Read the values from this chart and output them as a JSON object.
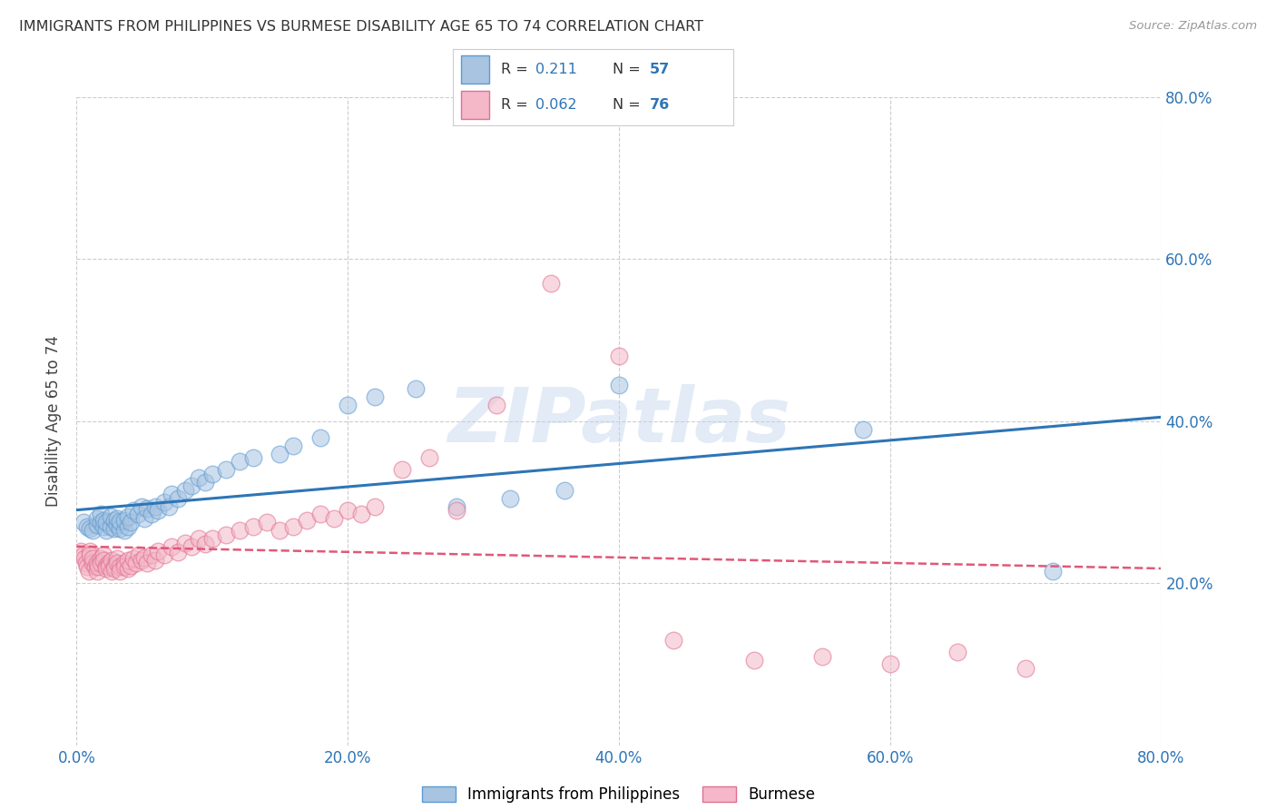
{
  "title": "IMMIGRANTS FROM PHILIPPINES VS BURMESE DISABILITY AGE 65 TO 74 CORRELATION CHART",
  "source": "Source: ZipAtlas.com",
  "ylabel": "Disability Age 65 to 74",
  "legend_label_1": "Immigrants from Philippines",
  "legend_label_2": "Burmese",
  "r1": 0.211,
  "n1": 57,
  "r2": 0.062,
  "n2": 76,
  "color1": "#a8c4e0",
  "color1_edge": "#5b9bd5",
  "color1_line": "#2e75b6",
  "color2": "#f4b8c8",
  "color2_edge": "#e07090",
  "color2_line": "#e05878",
  "xlim": [
    0.0,
    0.8
  ],
  "ylim": [
    0.0,
    0.8
  ],
  "xticks": [
    0.0,
    0.2,
    0.4,
    0.6,
    0.8
  ],
  "yticks": [
    0.2,
    0.4,
    0.6,
    0.8
  ],
  "xticklabels": [
    "0.0%",
    "20.0%",
    "40.0%",
    "60.0%",
    "80.0%"
  ],
  "yticklabels": [
    "20.0%",
    "40.0%",
    "60.0%",
    "80.0%"
  ],
  "background_color": "#ffffff",
  "grid_color": "#c8c8c8",
  "watermark": "ZIPatlas",
  "philippine_x": [
    0.005,
    0.008,
    0.01,
    0.012,
    0.015,
    0.015,
    0.018,
    0.018,
    0.02,
    0.02,
    0.022,
    0.022,
    0.025,
    0.025,
    0.028,
    0.028,
    0.03,
    0.03,
    0.032,
    0.032,
    0.035,
    0.035,
    0.038,
    0.038,
    0.04,
    0.042,
    0.045,
    0.048,
    0.05,
    0.052,
    0.055,
    0.058,
    0.06,
    0.065,
    0.068,
    0.07,
    0.075,
    0.08,
    0.085,
    0.09,
    0.095,
    0.1,
    0.11,
    0.12,
    0.13,
    0.15,
    0.16,
    0.18,
    0.2,
    0.22,
    0.25,
    0.28,
    0.32,
    0.36,
    0.4,
    0.58,
    0.72
  ],
  "philippine_y": [
    0.275,
    0.27,
    0.268,
    0.265,
    0.272,
    0.28,
    0.275,
    0.285,
    0.27,
    0.278,
    0.265,
    0.275,
    0.27,
    0.282,
    0.268,
    0.278,
    0.272,
    0.28,
    0.268,
    0.276,
    0.265,
    0.278,
    0.27,
    0.282,
    0.275,
    0.29,
    0.285,
    0.295,
    0.28,
    0.292,
    0.285,
    0.295,
    0.29,
    0.3,
    0.295,
    0.31,
    0.305,
    0.315,
    0.32,
    0.33,
    0.325,
    0.335,
    0.34,
    0.35,
    0.355,
    0.36,
    0.37,
    0.38,
    0.42,
    0.43,
    0.44,
    0.295,
    0.305,
    0.315,
    0.445,
    0.39,
    0.215
  ],
  "burmese_x": [
    0.003,
    0.005,
    0.006,
    0.007,
    0.008,
    0.009,
    0.01,
    0.01,
    0.012,
    0.012,
    0.014,
    0.015,
    0.015,
    0.016,
    0.018,
    0.018,
    0.02,
    0.02,
    0.022,
    0.022,
    0.024,
    0.024,
    0.026,
    0.026,
    0.028,
    0.028,
    0.03,
    0.03,
    0.032,
    0.032,
    0.035,
    0.035,
    0.038,
    0.038,
    0.04,
    0.042,
    0.044,
    0.046,
    0.048,
    0.05,
    0.052,
    0.055,
    0.058,
    0.06,
    0.065,
    0.07,
    0.075,
    0.08,
    0.085,
    0.09,
    0.095,
    0.1,
    0.11,
    0.12,
    0.13,
    0.14,
    0.15,
    0.16,
    0.17,
    0.18,
    0.19,
    0.2,
    0.21,
    0.22,
    0.24,
    0.26,
    0.28,
    0.31,
    0.35,
    0.4,
    0.44,
    0.5,
    0.55,
    0.6,
    0.65,
    0.7
  ],
  "burmese_y": [
    0.24,
    0.235,
    0.23,
    0.225,
    0.22,
    0.215,
    0.24,
    0.235,
    0.225,
    0.23,
    0.22,
    0.215,
    0.225,
    0.22,
    0.23,
    0.225,
    0.235,
    0.228,
    0.222,
    0.218,
    0.225,
    0.22,
    0.215,
    0.228,
    0.222,
    0.218,
    0.23,
    0.225,
    0.22,
    0.215,
    0.225,
    0.22,
    0.218,
    0.228,
    0.222,
    0.23,
    0.225,
    0.235,
    0.228,
    0.232,
    0.225,
    0.235,
    0.228,
    0.24,
    0.235,
    0.245,
    0.238,
    0.25,
    0.245,
    0.255,
    0.248,
    0.255,
    0.26,
    0.265,
    0.27,
    0.275,
    0.265,
    0.27,
    0.278,
    0.285,
    0.28,
    0.29,
    0.285,
    0.295,
    0.34,
    0.355,
    0.29,
    0.42,
    0.57,
    0.48,
    0.13,
    0.105,
    0.11,
    0.1,
    0.115,
    0.095
  ]
}
